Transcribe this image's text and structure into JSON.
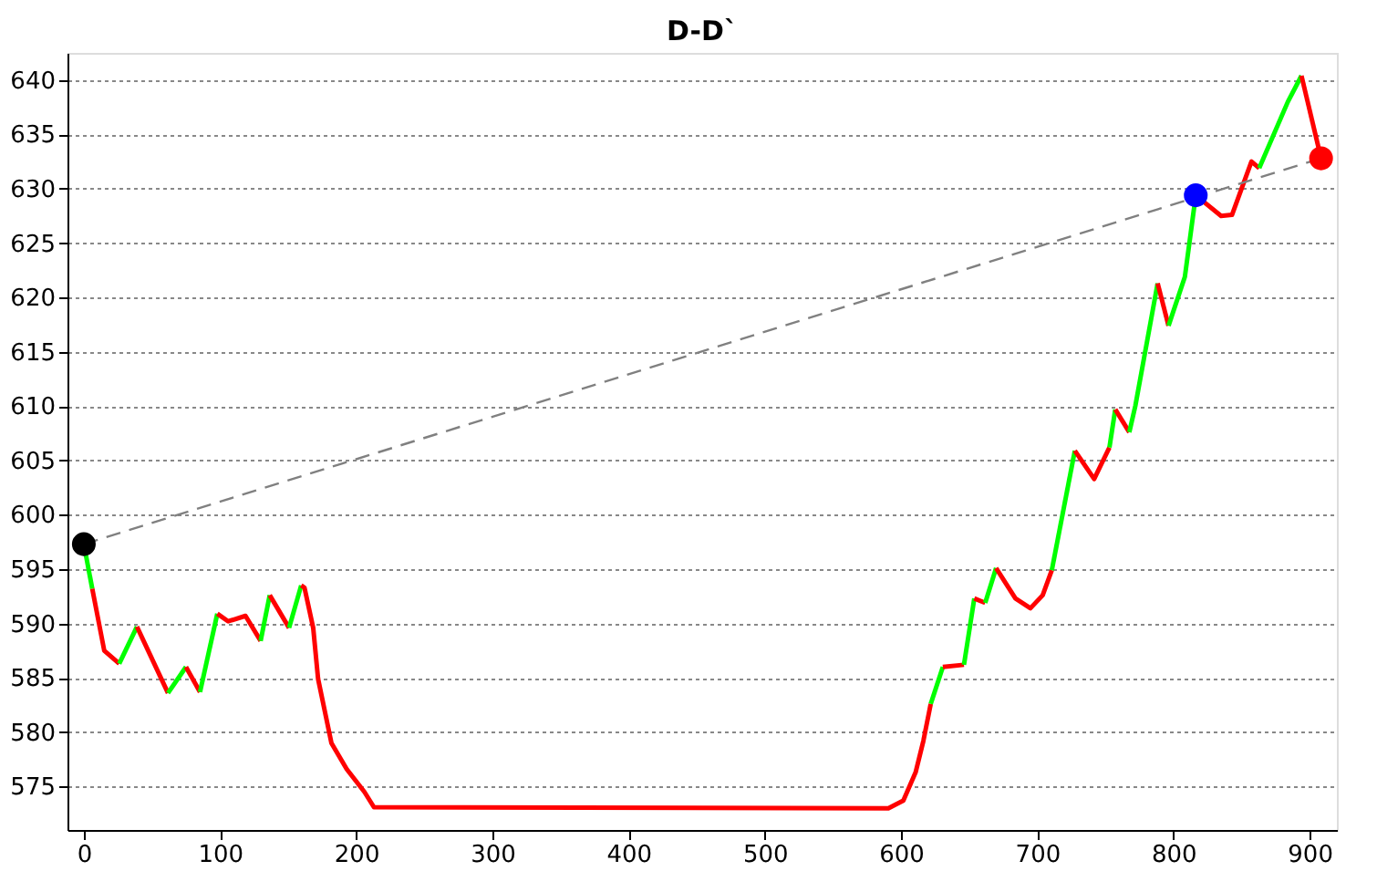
{
  "chart_data": {
    "type": "line",
    "title": "D-D`",
    "xlim": [
      -12,
      920
    ],
    "xticks": [
      0,
      100,
      200,
      300,
      400,
      500,
      600,
      700,
      800,
      900
    ],
    "ylim": [
      571,
      642.5
    ],
    "yticks": [
      575,
      580,
      585,
      590,
      595,
      600,
      605,
      610,
      615,
      620,
      625,
      630,
      635,
      640
    ],
    "grid": "y",
    "legend": false,
    "line_style": "solid",
    "series": [
      {
        "color": "#00ff00",
        "x": [
          0,
          6.2
        ],
        "values": [
          597.3,
          593.2
        ]
      },
      {
        "color": "#ff0000",
        "x": [
          6.2,
          15,
          26
        ],
        "values": [
          593.2,
          587.5,
          586.3
        ]
      },
      {
        "color": "#00ff00",
        "x": [
          26,
          39
        ],
        "values": [
          586.3,
          589.7
        ]
      },
      {
        "color": "#ff0000",
        "x": [
          39,
          61.8
        ],
        "values": [
          589.7,
          583.6
        ]
      },
      {
        "color": "#00ff00",
        "x": [
          61.8,
          75
        ],
        "values": [
          583.6,
          586
        ]
      },
      {
        "color": "#ff0000",
        "x": [
          75,
          85.3
        ],
        "values": [
          586,
          583.7
        ]
      },
      {
        "color": "#00ff00",
        "x": [
          85.3,
          98
        ],
        "values": [
          583.7,
          590.9
        ]
      },
      {
        "color": "#ff0000",
        "x": [
          98,
          106,
          118.7,
          129.8
        ],
        "values": [
          590.9,
          590.2,
          590.7,
          588.4
        ]
      },
      {
        "color": "#00ff00",
        "x": [
          129.8,
          136.5
        ],
        "values": [
          588.4,
          592.6
        ]
      },
      {
        "color": "#ff0000",
        "x": [
          136.5,
          150.7
        ],
        "values": [
          592.6,
          589.6
        ]
      },
      {
        "color": "#00ff00",
        "x": [
          150.7,
          159.6
        ],
        "values": [
          589.6,
          593.5
        ]
      },
      {
        "color": "#ff0000",
        "x": [
          159.6,
          162,
          168.4,
          172,
          181.8,
          193,
          206,
          213,
          590.7,
          601.7,
          610.7,
          616.4,
          621.8
        ],
        "values": [
          593.5,
          593.3,
          589.6,
          584.9,
          579,
          576.6,
          574.5,
          573.1,
          573,
          573.7,
          576.3,
          579.2,
          582.6
        ]
      },
      {
        "color": "#00ff00",
        "x": [
          621.8,
          630.7
        ],
        "values": [
          582.6,
          586
        ]
      },
      {
        "color": "#ff0000",
        "x": [
          630.7,
          646.2
        ],
        "values": [
          586,
          586.2
        ]
      },
      {
        "color": "#00ff00",
        "x": [
          646.2,
          653.8
        ],
        "values": [
          586.2,
          592.3
        ]
      },
      {
        "color": "#ff0000",
        "x": [
          653.8,
          661.8
        ],
        "values": [
          592.3,
          591.9
        ]
      },
      {
        "color": "#00ff00",
        "x": [
          661.8,
          669.8
        ],
        "values": [
          591.9,
          595.1
        ]
      },
      {
        "color": "#ff0000",
        "x": [
          669.8,
          684,
          695,
          704,
          710.7
        ],
        "values": [
          595.1,
          592.3,
          591.4,
          592.6,
          594.9
        ]
      },
      {
        "color": "#00ff00",
        "x": [
          710.7,
          727.6
        ],
        "values": [
          594.9,
          605.9
        ]
      },
      {
        "color": "#ff0000",
        "x": [
          727.6,
          741.8,
          753
        ],
        "values": [
          605.9,
          603.3,
          606.2
        ]
      },
      {
        "color": "#00ff00",
        "x": [
          753,
          757.3
        ],
        "values": [
          606.2,
          609.7
        ]
      },
      {
        "color": "#ff0000",
        "x": [
          757.3,
          767.6
        ],
        "values": [
          609.7,
          607.6
        ]
      },
      {
        "color": "#00ff00",
        "x": [
          767.6,
          772,
          788.4
        ],
        "values": [
          607.6,
          610,
          621.3
        ]
      },
      {
        "color": "#ff0000",
        "x": [
          788.4,
          796.4
        ],
        "values": [
          621.3,
          617.4
        ]
      },
      {
        "color": "#00ff00",
        "x": [
          796.4,
          808.4,
          816.4
        ],
        "values": [
          617.4,
          621.9,
          629.4
        ]
      },
      {
        "color": "#ff0000",
        "x": [
          816.4,
          835,
          843,
          857.3,
          863
        ],
        "values": [
          629.4,
          627.5,
          627.6,
          632.5,
          631.9
        ]
      },
      {
        "color": "#00ff00",
        "x": [
          863,
          884,
          894
        ],
        "values": [
          631.9,
          638,
          640.4
        ]
      },
      {
        "color": "#ff0000",
        "x": [
          894,
          908.4
        ],
        "values": [
          640.4,
          632.8
        ]
      },
      {
        "type": "line",
        "line_style": "dashed",
        "color": "#808080",
        "x": [
          0,
          908.4
        ],
        "values": [
          597.3,
          632.8
        ]
      },
      {
        "type": "scatter",
        "marker": "circle",
        "x": [
          0,
          816.4,
          908.4
        ],
        "values": [
          597.3,
          629.4,
          632.8
        ],
        "colors": [
          "#000000",
          "#0000ff",
          "#ff0000"
        ]
      }
    ]
  }
}
